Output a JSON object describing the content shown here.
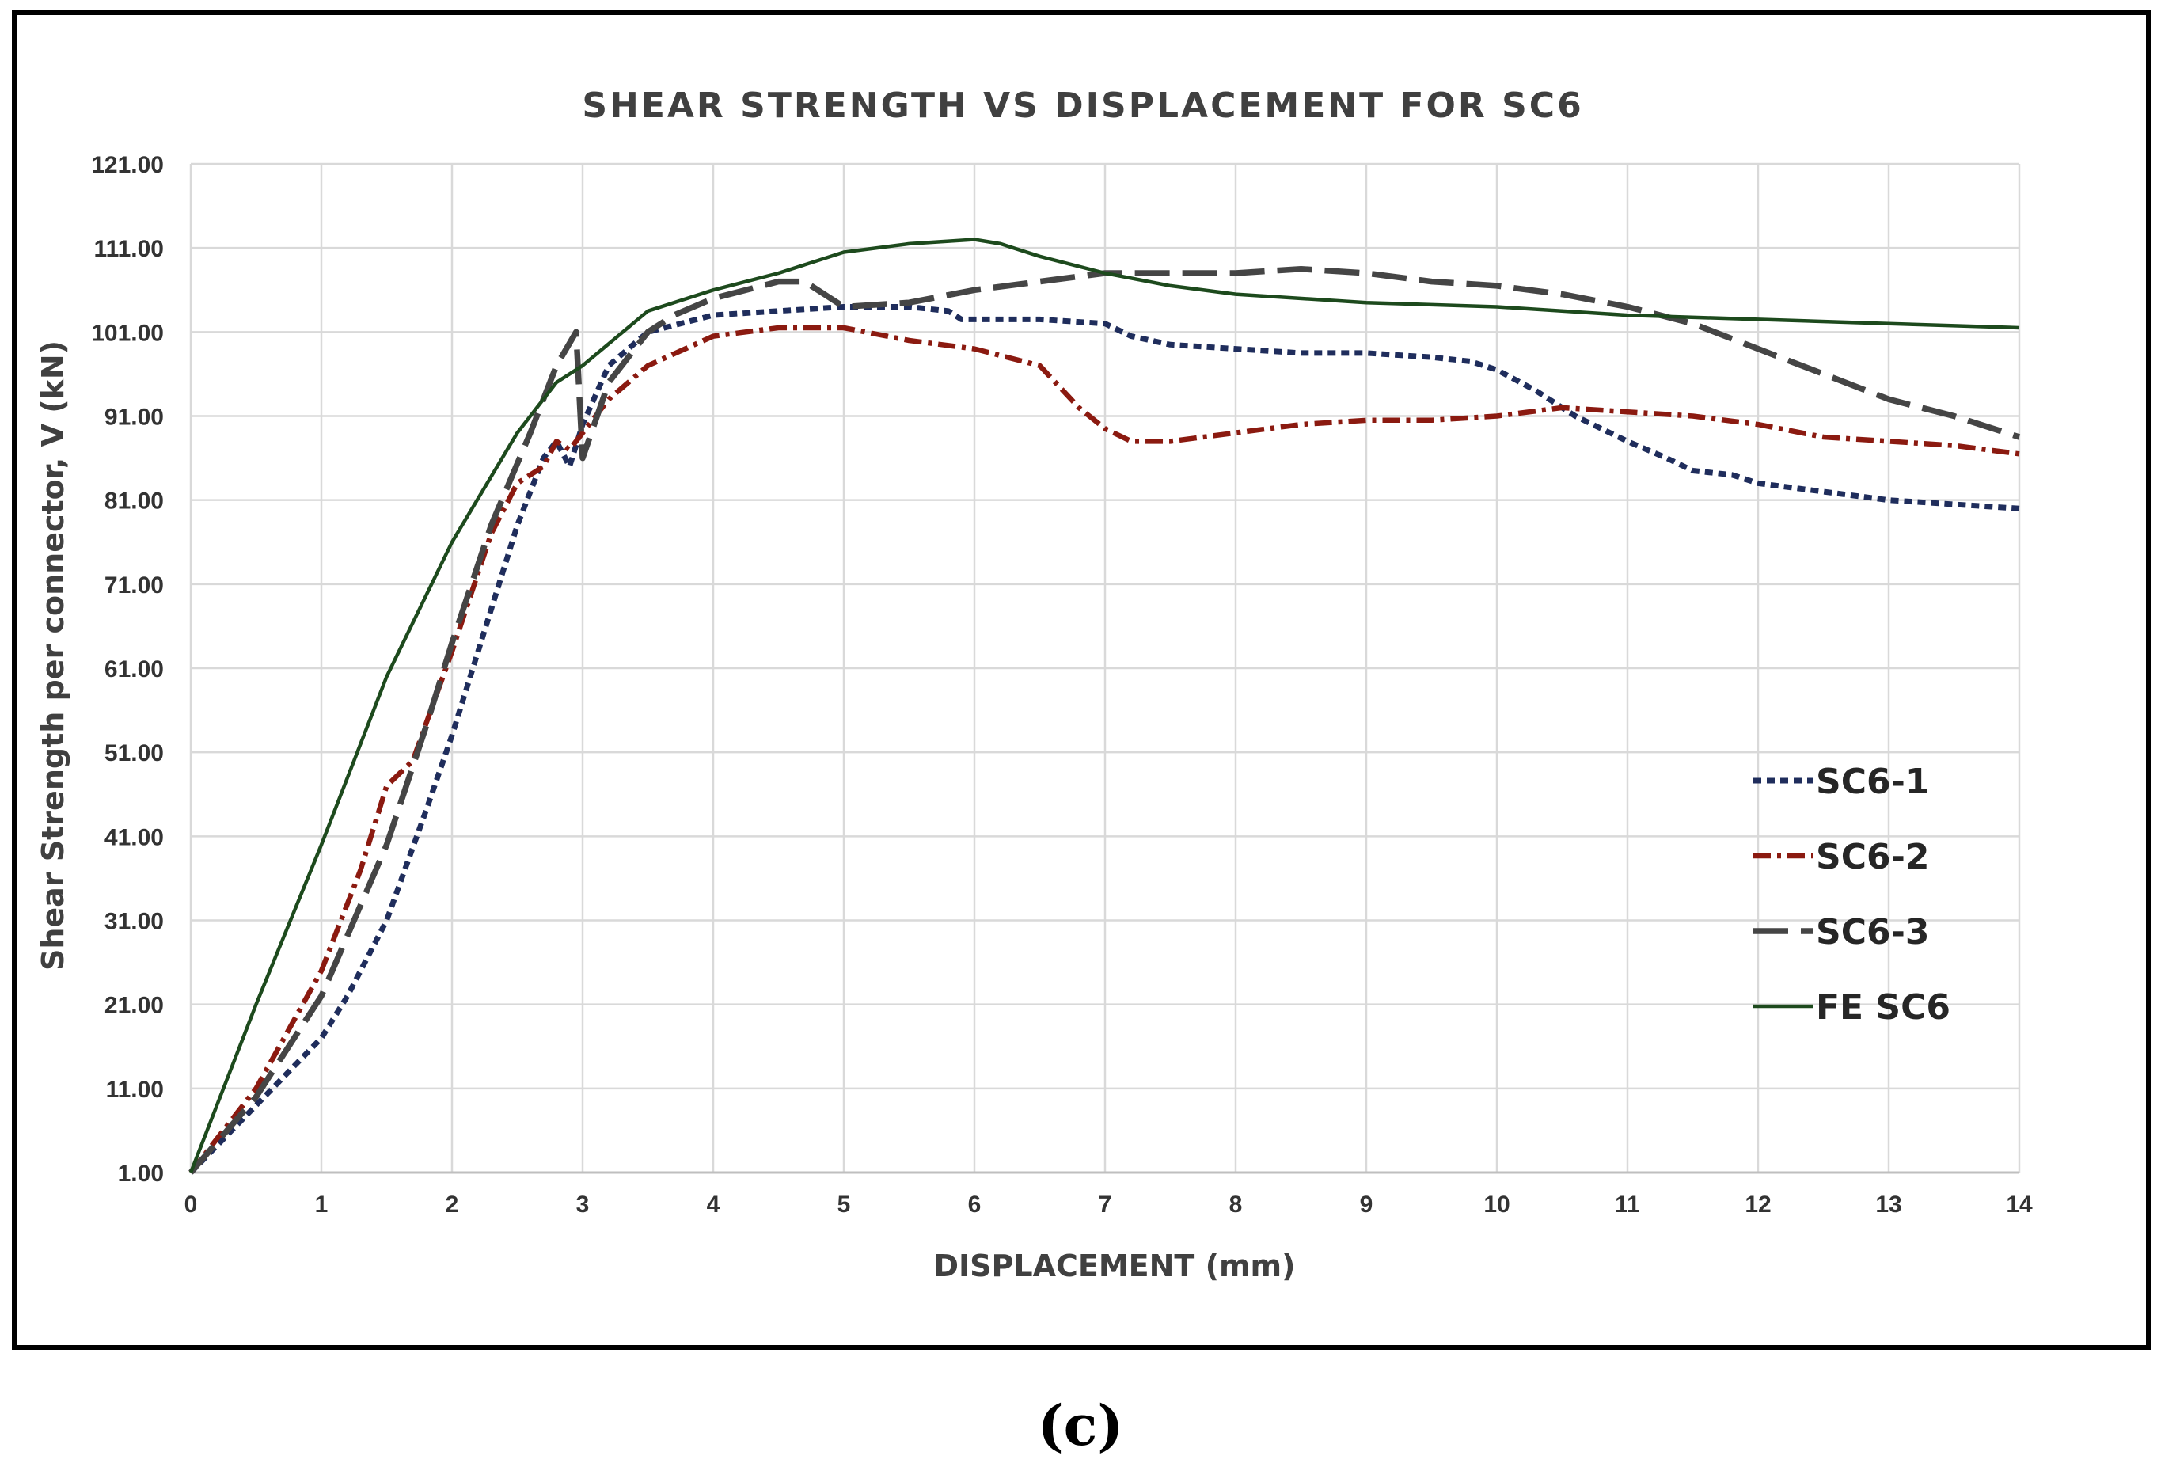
{
  "chart_data": {
    "type": "line",
    "title": "SHEAR STRENGTH VS DISPLACEMENT FOR SC6",
    "xlabel": "DISPLACEMENT (mm)",
    "ylabel": "Shear Strength per connector, V (kN)",
    "xlim": [
      0,
      14
    ],
    "ylim": [
      1,
      121
    ],
    "grid": true,
    "legend_position": "right",
    "x_ticks": [
      "0",
      "1",
      "2",
      "3",
      "4",
      "5",
      "6",
      "7",
      "8",
      "9",
      "10",
      "11",
      "12",
      "13",
      "14"
    ],
    "y_ticks": [
      "1.00",
      "11.00",
      "21.00",
      "31.00",
      "41.00",
      "51.00",
      "61.00",
      "71.00",
      "81.00",
      "91.00",
      "101.00",
      "111.00",
      "121.00"
    ],
    "series": [
      {
        "name": "SC6-1",
        "color": "#1f2d5c",
        "style": "dashed",
        "x": [
          0,
          0.5,
          1.0,
          1.2,
          1.5,
          1.8,
          2.0,
          2.2,
          2.5,
          2.7,
          2.8,
          2.9,
          3.0,
          3.2,
          3.5,
          4.0,
          4.5,
          5.0,
          5.5,
          5.8,
          5.9,
          6.5,
          7.0,
          7.2,
          7.5,
          8.0,
          8.5,
          9.0,
          9.5,
          9.8,
          10.0,
          10.3,
          10.6,
          11.0,
          11.3,
          11.5,
          11.8,
          12.0,
          12.5,
          13.0,
          13.5,
          14.0
        ],
        "y": [
          1,
          9,
          17,
          22,
          31,
          44,
          53,
          63,
          78,
          86,
          88,
          85,
          90,
          97,
          101,
          103,
          103.5,
          104,
          104,
          103.5,
          102.5,
          102.5,
          102,
          100.5,
          99.5,
          99,
          98.5,
          98.5,
          98,
          97.5,
          96.5,
          94,
          91,
          88,
          86,
          84.5,
          84,
          83,
          82,
          81,
          80.5,
          80
        ]
      },
      {
        "name": "SC6-2",
        "color": "#8b1a10",
        "style": "dashdot",
        "x": [
          0,
          0.5,
          1.0,
          1.3,
          1.5,
          1.7,
          2.0,
          2.3,
          2.5,
          2.7,
          2.8,
          2.9,
          3.0,
          3.2,
          3.5,
          4.0,
          4.5,
          5.0,
          5.5,
          6.0,
          6.5,
          6.8,
          7.0,
          7.2,
          7.5,
          8.0,
          8.5,
          9.0,
          9.5,
          10.0,
          10.5,
          11.0,
          11.5,
          12.0,
          12.5,
          13.0,
          13.5,
          14.0
        ],
        "y": [
          1,
          11,
          25,
          37,
          47,
          50,
          63,
          77,
          83,
          85,
          88,
          87,
          89,
          93,
          97,
          100.5,
          101.5,
          101.5,
          100,
          99,
          97,
          92,
          89.5,
          88,
          88,
          89,
          90,
          90.5,
          90.5,
          91,
          92,
          91.5,
          91,
          90,
          88.5,
          88,
          87.5,
          86.5
        ]
      },
      {
        "name": "SC6-3",
        "color": "#454545",
        "style": "longdash",
        "x": [
          0,
          0.5,
          1.0,
          1.5,
          1.8,
          2.0,
          2.3,
          2.6,
          2.8,
          2.95,
          3.0,
          3.2,
          3.5,
          3.7,
          4.0,
          4.5,
          4.7,
          4.9,
          5.0,
          5.5,
          6.0,
          6.5,
          7.0,
          7.5,
          8.0,
          8.5,
          9.0,
          9.5,
          10.0,
          10.5,
          11.0,
          11.5,
          12.0,
          12.5,
          13.0,
          13.5,
          14.0
        ],
        "y": [
          1,
          10,
          22,
          40,
          54,
          64,
          78,
          89,
          97,
          101,
          86,
          95,
          101,
          103,
          105,
          107,
          107,
          105,
          104,
          104.5,
          106,
          107,
          108,
          108,
          108,
          108.5,
          108,
          107,
          106.5,
          105.5,
          104,
          102,
          99,
          96,
          93,
          91,
          88.5
        ]
      },
      {
        "name": "FE SC6",
        "color": "#1d4a1d",
        "style": "solid",
        "x": [
          0,
          0.5,
          1.0,
          1.5,
          2.0,
          2.5,
          2.8,
          3.0,
          3.5,
          4.0,
          4.5,
          5.0,
          5.5,
          6.0,
          6.2,
          6.5,
          7.0,
          7.5,
          8.0,
          9.0,
          10.0,
          11.0,
          12.0,
          13.0,
          14.0
        ],
        "y": [
          1,
          21,
          40,
          60,
          76,
          89,
          95,
          97,
          103.5,
          106,
          108,
          110.5,
          111.5,
          112,
          111.5,
          110,
          108,
          106.5,
          105.5,
          104.5,
          104,
          103,
          102.5,
          102,
          101.5
        ]
      }
    ]
  },
  "caption": "(c)"
}
